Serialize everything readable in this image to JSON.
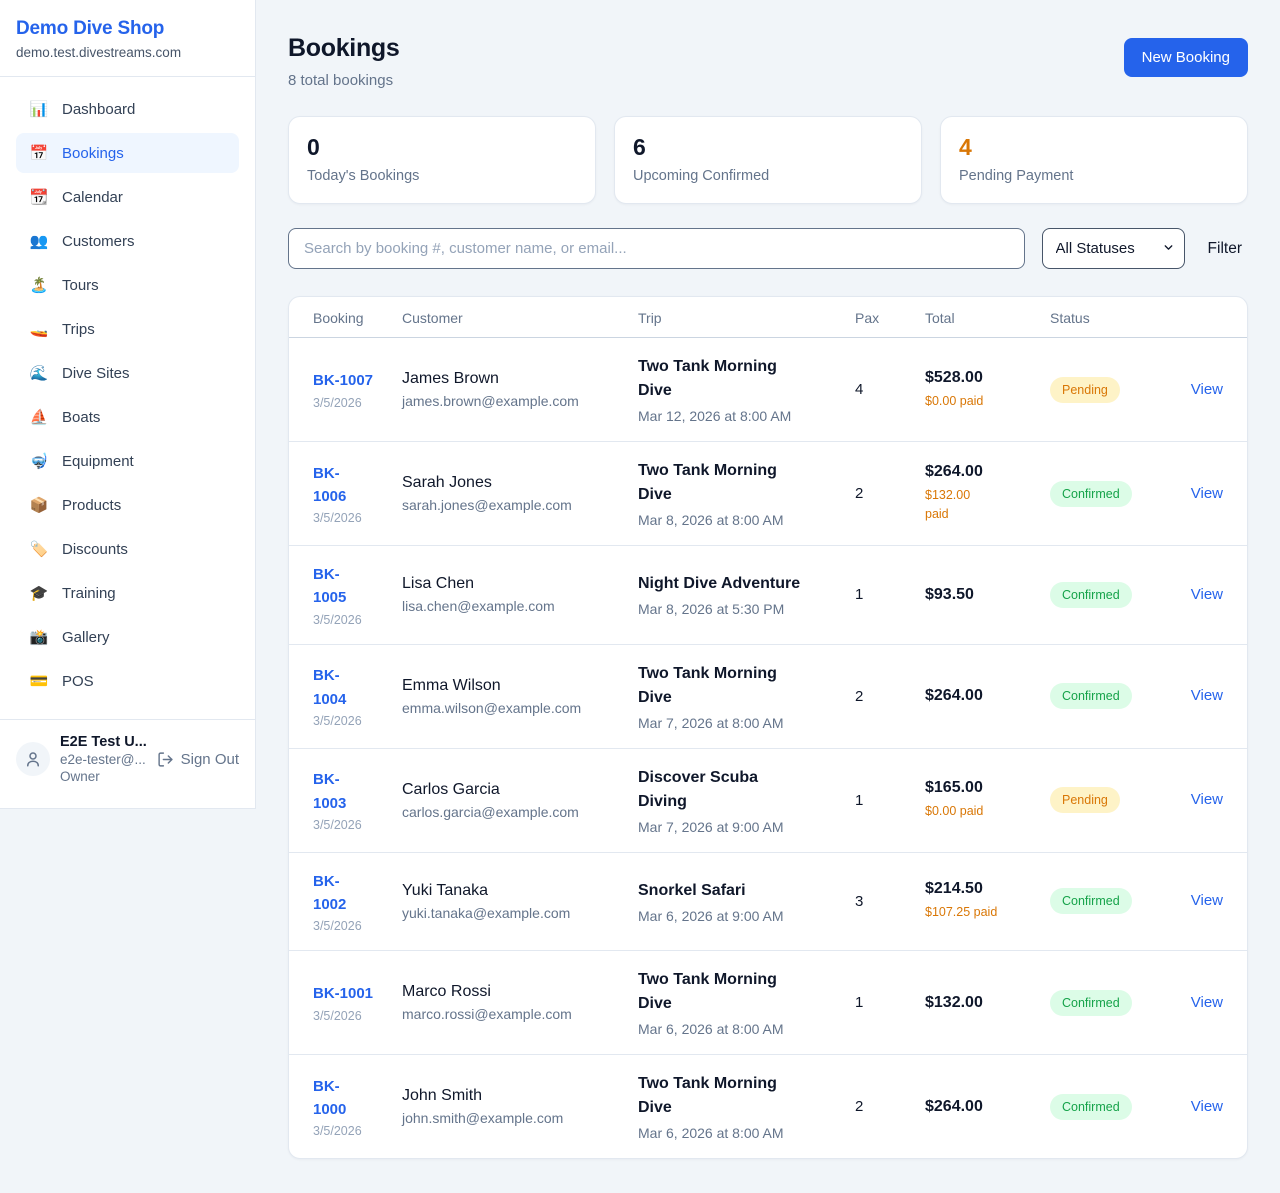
{
  "colors": {
    "accent": "#2563eb",
    "pending_text": "#d97706",
    "pending_bg": "#fef3c7",
    "confirmed_text": "#16a34a",
    "confirmed_bg": "#dcfce7",
    "stat_pending_value": "#d97706"
  },
  "sidebar": {
    "brand": {
      "name": "Demo Dive Shop",
      "domain": "demo.test.divestreams.com"
    },
    "nav": [
      {
        "key": "dashboard",
        "icon": "📊",
        "icon_name": "bar-chart-icon",
        "label": "Dashboard",
        "active": false
      },
      {
        "key": "bookings",
        "icon": "📅",
        "icon_name": "calendar-icon",
        "label": "Bookings",
        "active": true
      },
      {
        "key": "calendar",
        "icon": "📆",
        "icon_name": "tear-calendar-icon",
        "label": "Calendar",
        "active": false
      },
      {
        "key": "customers",
        "icon": "👥",
        "icon_name": "people-icon",
        "label": "Customers",
        "active": false
      },
      {
        "key": "tours",
        "icon": "🏝️",
        "icon_name": "island-icon",
        "label": "Tours",
        "active": false
      },
      {
        "key": "trips",
        "icon": "🚤",
        "icon_name": "speedboat-icon",
        "label": "Trips",
        "active": false
      },
      {
        "key": "dive-sites",
        "icon": "🌊",
        "icon_name": "wave-icon",
        "label": "Dive Sites",
        "active": false
      },
      {
        "key": "boats",
        "icon": "⛵",
        "icon_name": "sailboat-icon",
        "label": "Boats",
        "active": false
      },
      {
        "key": "equipment",
        "icon": "🤿",
        "icon_name": "diving-mask-icon",
        "label": "Equipment",
        "active": false
      },
      {
        "key": "products",
        "icon": "📦",
        "icon_name": "package-icon",
        "label": "Products",
        "active": false
      },
      {
        "key": "discounts",
        "icon": "🏷️",
        "icon_name": "tag-icon",
        "label": "Discounts",
        "active": false
      },
      {
        "key": "training",
        "icon": "🎓",
        "icon_name": "graduation-cap-icon",
        "label": "Training",
        "active": false
      },
      {
        "key": "gallery",
        "icon": "📸",
        "icon_name": "camera-icon",
        "label": "Gallery",
        "active": false
      },
      {
        "key": "pos",
        "icon": "💳",
        "icon_name": "credit-card-icon",
        "label": "POS",
        "active": false
      }
    ],
    "user": {
      "name": "E2E Test U...",
      "email": "e2e-tester@...",
      "role": "Owner",
      "sign_out_label": "Sign Out"
    }
  },
  "header": {
    "title": "Bookings",
    "subtitle": "8 total bookings",
    "new_booking_label": "New Booking"
  },
  "stats": [
    {
      "key": "todays-bookings",
      "value": "0",
      "label": "Today's Bookings",
      "value_color": "#0f172a"
    },
    {
      "key": "upcoming-confirmed",
      "value": "6",
      "label": "Upcoming Confirmed",
      "value_color": "#0f172a"
    },
    {
      "key": "pending-payment",
      "value": "4",
      "label": "Pending Payment",
      "value_color": "#d97706"
    }
  ],
  "filters": {
    "search_placeholder": "Search by booking #, customer name, or email...",
    "status_selected": "All Statuses",
    "filter_label": "Filter"
  },
  "table": {
    "columns": [
      "Booking",
      "Customer",
      "Trip",
      "Pax",
      "Total",
      "Status",
      ""
    ],
    "view_label": "View",
    "rows": [
      {
        "id": "BK-1007",
        "id_display": "BK-1007",
        "date": "3/5/2026",
        "customer": "James Brown",
        "email": "james.brown@example.com",
        "trip": "Two Tank Morning\nDive",
        "trip_datetime": "Mar 12, 2026 at 8:00 AM",
        "pax": "4",
        "total": "$528.00",
        "paid": "$0.00 paid",
        "status": "Pending"
      },
      {
        "id": "BK-1006",
        "id_display": "BK-\n1006",
        "date": "3/5/2026",
        "customer": "Sarah Jones",
        "email": "sarah.jones@example.com",
        "trip": "Two Tank Morning\nDive",
        "trip_datetime": "Mar 8, 2026 at 8:00 AM",
        "pax": "2",
        "total": "$264.00",
        "paid": "$132.00\npaid",
        "status": "Confirmed"
      },
      {
        "id": "BK-1005",
        "id_display": "BK-\n1005",
        "date": "3/5/2026",
        "customer": "Lisa Chen",
        "email": "lisa.chen@example.com",
        "trip": "Night Dive Adventure",
        "trip_datetime": "Mar 8, 2026 at 5:30 PM",
        "pax": "1",
        "total": "$93.50",
        "paid": "",
        "status": "Confirmed"
      },
      {
        "id": "BK-1004",
        "id_display": "BK-\n1004",
        "date": "3/5/2026",
        "customer": "Emma Wilson",
        "email": "emma.wilson@example.com",
        "trip": "Two Tank Morning\nDive",
        "trip_datetime": "Mar 7, 2026 at 8:00 AM",
        "pax": "2",
        "total": "$264.00",
        "paid": "",
        "status": "Confirmed"
      },
      {
        "id": "BK-1003",
        "id_display": "BK-\n1003",
        "date": "3/5/2026",
        "customer": "Carlos Garcia",
        "email": "carlos.garcia@example.com",
        "trip": "Discover Scuba\nDiving",
        "trip_datetime": "Mar 7, 2026 at 9:00 AM",
        "pax": "1",
        "total": "$165.00",
        "paid": "$0.00 paid",
        "status": "Pending"
      },
      {
        "id": "BK-1002",
        "id_display": "BK-\n1002",
        "date": "3/5/2026",
        "customer": "Yuki Tanaka",
        "email": "yuki.tanaka@example.com",
        "trip": "Snorkel Safari",
        "trip_datetime": "Mar 6, 2026 at 9:00 AM",
        "pax": "3",
        "total": "$214.50",
        "paid": "$107.25 paid",
        "status": "Confirmed"
      },
      {
        "id": "BK-1001",
        "id_display": "BK-1001",
        "date": "3/5/2026",
        "customer": "Marco Rossi",
        "email": "marco.rossi@example.com",
        "trip": "Two Tank Morning\nDive",
        "trip_datetime": "Mar 6, 2026 at 8:00 AM",
        "pax": "1",
        "total": "$132.00",
        "paid": "",
        "status": "Confirmed"
      },
      {
        "id": "BK-1000",
        "id_display": "BK-\n1000",
        "date": "3/5/2026",
        "customer": "John Smith",
        "email": "john.smith@example.com",
        "trip": "Two Tank Morning\nDive",
        "trip_datetime": "Mar 6, 2026 at 8:00 AM",
        "pax": "2",
        "total": "$264.00",
        "paid": "",
        "status": "Confirmed"
      }
    ]
  }
}
